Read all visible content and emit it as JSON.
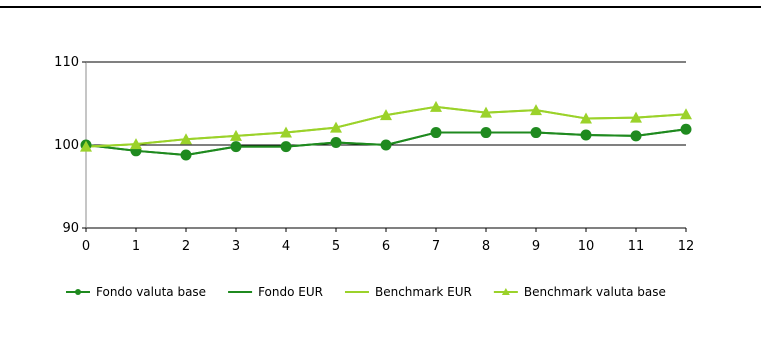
{
  "chart_data": {
    "type": "line",
    "x": [
      0,
      1,
      2,
      3,
      4,
      5,
      6,
      7,
      8,
      9,
      10,
      11,
      12
    ],
    "ylim": [
      90,
      110
    ],
    "yticks": [
      90,
      100,
      110
    ],
    "grid": "horizontal",
    "legend_position": "bottom",
    "title": "",
    "xlabel": "",
    "ylabel": "",
    "series": [
      {
        "name": "Fondo valuta base",
        "color": "#1f8a1f",
        "marker": "circle",
        "values": [
          100,
          99.3,
          98.8,
          99.8,
          99.8,
          100.3,
          100.0,
          101.5,
          101.5,
          101.5,
          101.2,
          101.1,
          101.9
        ]
      },
      {
        "name": "Fondo EUR",
        "color": "#1f8a1f",
        "marker": "none",
        "values": [
          100,
          99.3,
          98.8,
          99.8,
          99.8,
          100.3,
          100.0,
          101.5,
          101.5,
          101.5,
          101.2,
          101.1,
          101.9
        ]
      },
      {
        "name": "Benchmark EUR",
        "color": "#9bd22a",
        "marker": "none",
        "values": [
          99.8,
          100.1,
          100.7,
          101.1,
          101.5,
          102.1,
          103.6,
          104.6,
          103.9,
          104.2,
          103.2,
          103.3,
          103.7
        ]
      },
      {
        "name": "Benchmark valuta base",
        "color": "#9bd22a",
        "marker": "triangle",
        "values": [
          99.8,
          100.1,
          100.7,
          101.1,
          101.5,
          102.1,
          103.6,
          104.6,
          103.9,
          104.2,
          103.2,
          103.3,
          103.7
        ]
      }
    ]
  }
}
